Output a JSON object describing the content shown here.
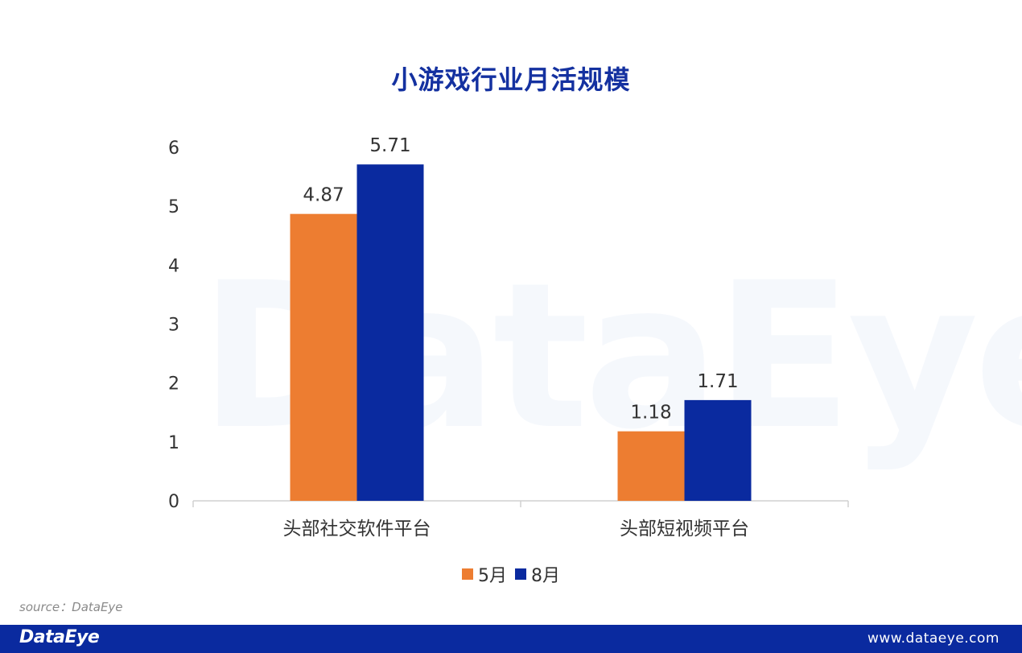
{
  "chart_data": {
    "type": "bar",
    "title": "小游戏行业月活规模",
    "categories": [
      "头部社交软件平台",
      "头部短视频平台"
    ],
    "series": [
      {
        "name": "5月",
        "values": [
          4.87,
          1.18
        ],
        "color": "#ed7d31"
      },
      {
        "name": "8月",
        "values": [
          5.71,
          1.71
        ],
        "color": "#0a2a9f"
      }
    ],
    "yticks": [
      0,
      1,
      2,
      3,
      4,
      5,
      6
    ],
    "ylim": [
      0,
      6
    ],
    "grid": false,
    "legend": "bottom-center",
    "xlabel": "",
    "ylabel": ""
  },
  "source": "source：DataEye",
  "watermark": "DataEye",
  "footer": {
    "logo": "DataEye",
    "url": "www.dataeye.com",
    "color": "#0a2a9f"
  }
}
